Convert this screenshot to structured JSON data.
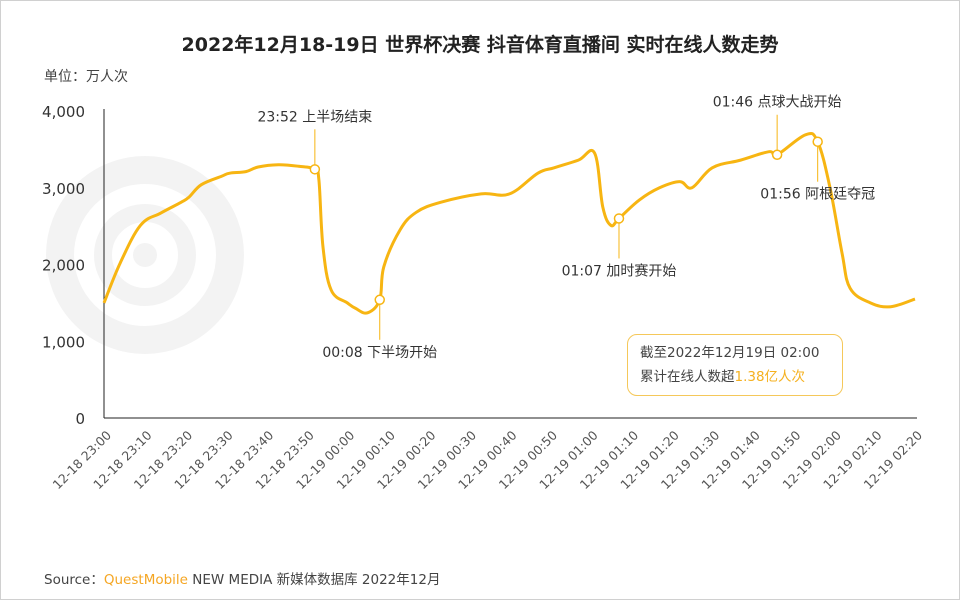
{
  "title": "2022年12月18-19日 世界杯决赛 抖音体育直播间 实时在线人数走势",
  "unit_label": "单位：万人次",
  "watermark": "QUEST MOBILE",
  "source": {
    "prefix": "Source：",
    "brand": "QuestMobile",
    "rest": " NEW MEDIA 新媒体数据库 2022年12月"
  },
  "info_box": {
    "line1": "截至2022年12月19日 02:00",
    "line2_prefix": "累计在线人数超",
    "line2_highlight": "1.38亿人次"
  },
  "colors": {
    "line": "#f7b512",
    "highlight": "#f5b120",
    "axis": "#222222",
    "watermark": "#f2f2f2"
  },
  "chart_data": {
    "type": "line",
    "title": "2022年12月18-19日 世界杯决赛 抖音体育直播间 实时在线人数走势",
    "ylabel": "单位：万人次",
    "ylim": [
      0,
      4000
    ],
    "yticks": [
      "0",
      "1,000",
      "2,000",
      "3,000",
      "4,000"
    ],
    "ytick_values": [
      0,
      1000,
      2000,
      3000,
      4000
    ],
    "xlim": [
      "12-18 23:00",
      "12-19 02:20"
    ],
    "xticks": [
      "12-18 23:00",
      "12-18 23:10",
      "12-18 23:20",
      "12-18 23:30",
      "12-18 23:40",
      "12-18 23:50",
      "12-19 00:00",
      "12-19 00:10",
      "12-19 00:20",
      "12-19 00:30",
      "12-19 00:40",
      "12-19 00:50",
      "12-19 01:00",
      "12-19 01:10",
      "12-19 01:20",
      "12-19 01:30",
      "12-19 01:40",
      "12-19 01:50",
      "12-19 02:00",
      "12-19 02:10",
      "12-19 02:20"
    ],
    "grid": false,
    "series": [
      {
        "x": [
          "12-18 23:00",
          "12-18 23:04",
          "12-18 23:09",
          "12-18 23:14",
          "12-18 23:19",
          "12-18 23:21",
          "12-18 23:24",
          "12-18 23:29",
          "12-18 23:31",
          "12-18 23:35",
          "12-18 23:38",
          "12-18 23:43",
          "12-18 23:48",
          "12-18 23:52",
          "12-18 23:53",
          "12-18 23:54",
          "12-18 23:56",
          "12-19 00:00",
          "12-19 00:02",
          "12-19 00:05",
          "12-19 00:08",
          "12-19 00:09",
          "12-19 00:13",
          "12-19 00:17",
          "12-19 00:23",
          "12-19 00:33",
          "12-19 00:40",
          "12-19 00:47",
          "12-19 00:51",
          "12-19 00:57",
          "12-19 01:01",
          "12-19 01:03",
          "12-19 01:05",
          "12-19 01:07",
          "12-19 01:12",
          "12-19 01:17",
          "12-19 01:22",
          "12-19 01:25",
          "12-19 01:30",
          "12-19 01:37",
          "12-19 01:44",
          "12-19 01:46",
          "12-19 01:53",
          "12-19 01:56",
          "12-19 01:59",
          "12-19 02:02",
          "12-19 02:04",
          "12-19 02:09",
          "12-19 02:14",
          "12-19 02:20"
        ],
        "values": [
          1500,
          2020,
          2510,
          2670,
          2810,
          2880,
          3040,
          3150,
          3190,
          3210,
          3270,
          3300,
          3280,
          3240,
          3100,
          2230,
          1670,
          1500,
          1430,
          1370,
          1540,
          1970,
          2450,
          2680,
          2810,
          2920,
          2920,
          3190,
          3260,
          3360,
          3450,
          2750,
          2510,
          2600,
          2840,
          3000,
          3080,
          3000,
          3260,
          3360,
          3470,
          3430,
          3690,
          3600,
          3010,
          2150,
          1690,
          1500,
          1450,
          1550
        ]
      }
    ],
    "annotations": [
      {
        "time": "12-18 23:52",
        "value": 3240,
        "label": "23:52 上半场结束",
        "position": "above"
      },
      {
        "time": "12-19 00:08",
        "value": 1540,
        "label": "00:08 下半场开始",
        "position": "below"
      },
      {
        "time": "12-19 01:07",
        "value": 2600,
        "label": "01:07 加时赛开始",
        "position": "below"
      },
      {
        "time": "12-19 01:46",
        "value": 3430,
        "label": "01:46 点球大战开始",
        "position": "above"
      },
      {
        "time": "12-19 01:56",
        "value": 3600,
        "label": "01:56 阿根廷夺冠",
        "position": "below"
      }
    ]
  }
}
